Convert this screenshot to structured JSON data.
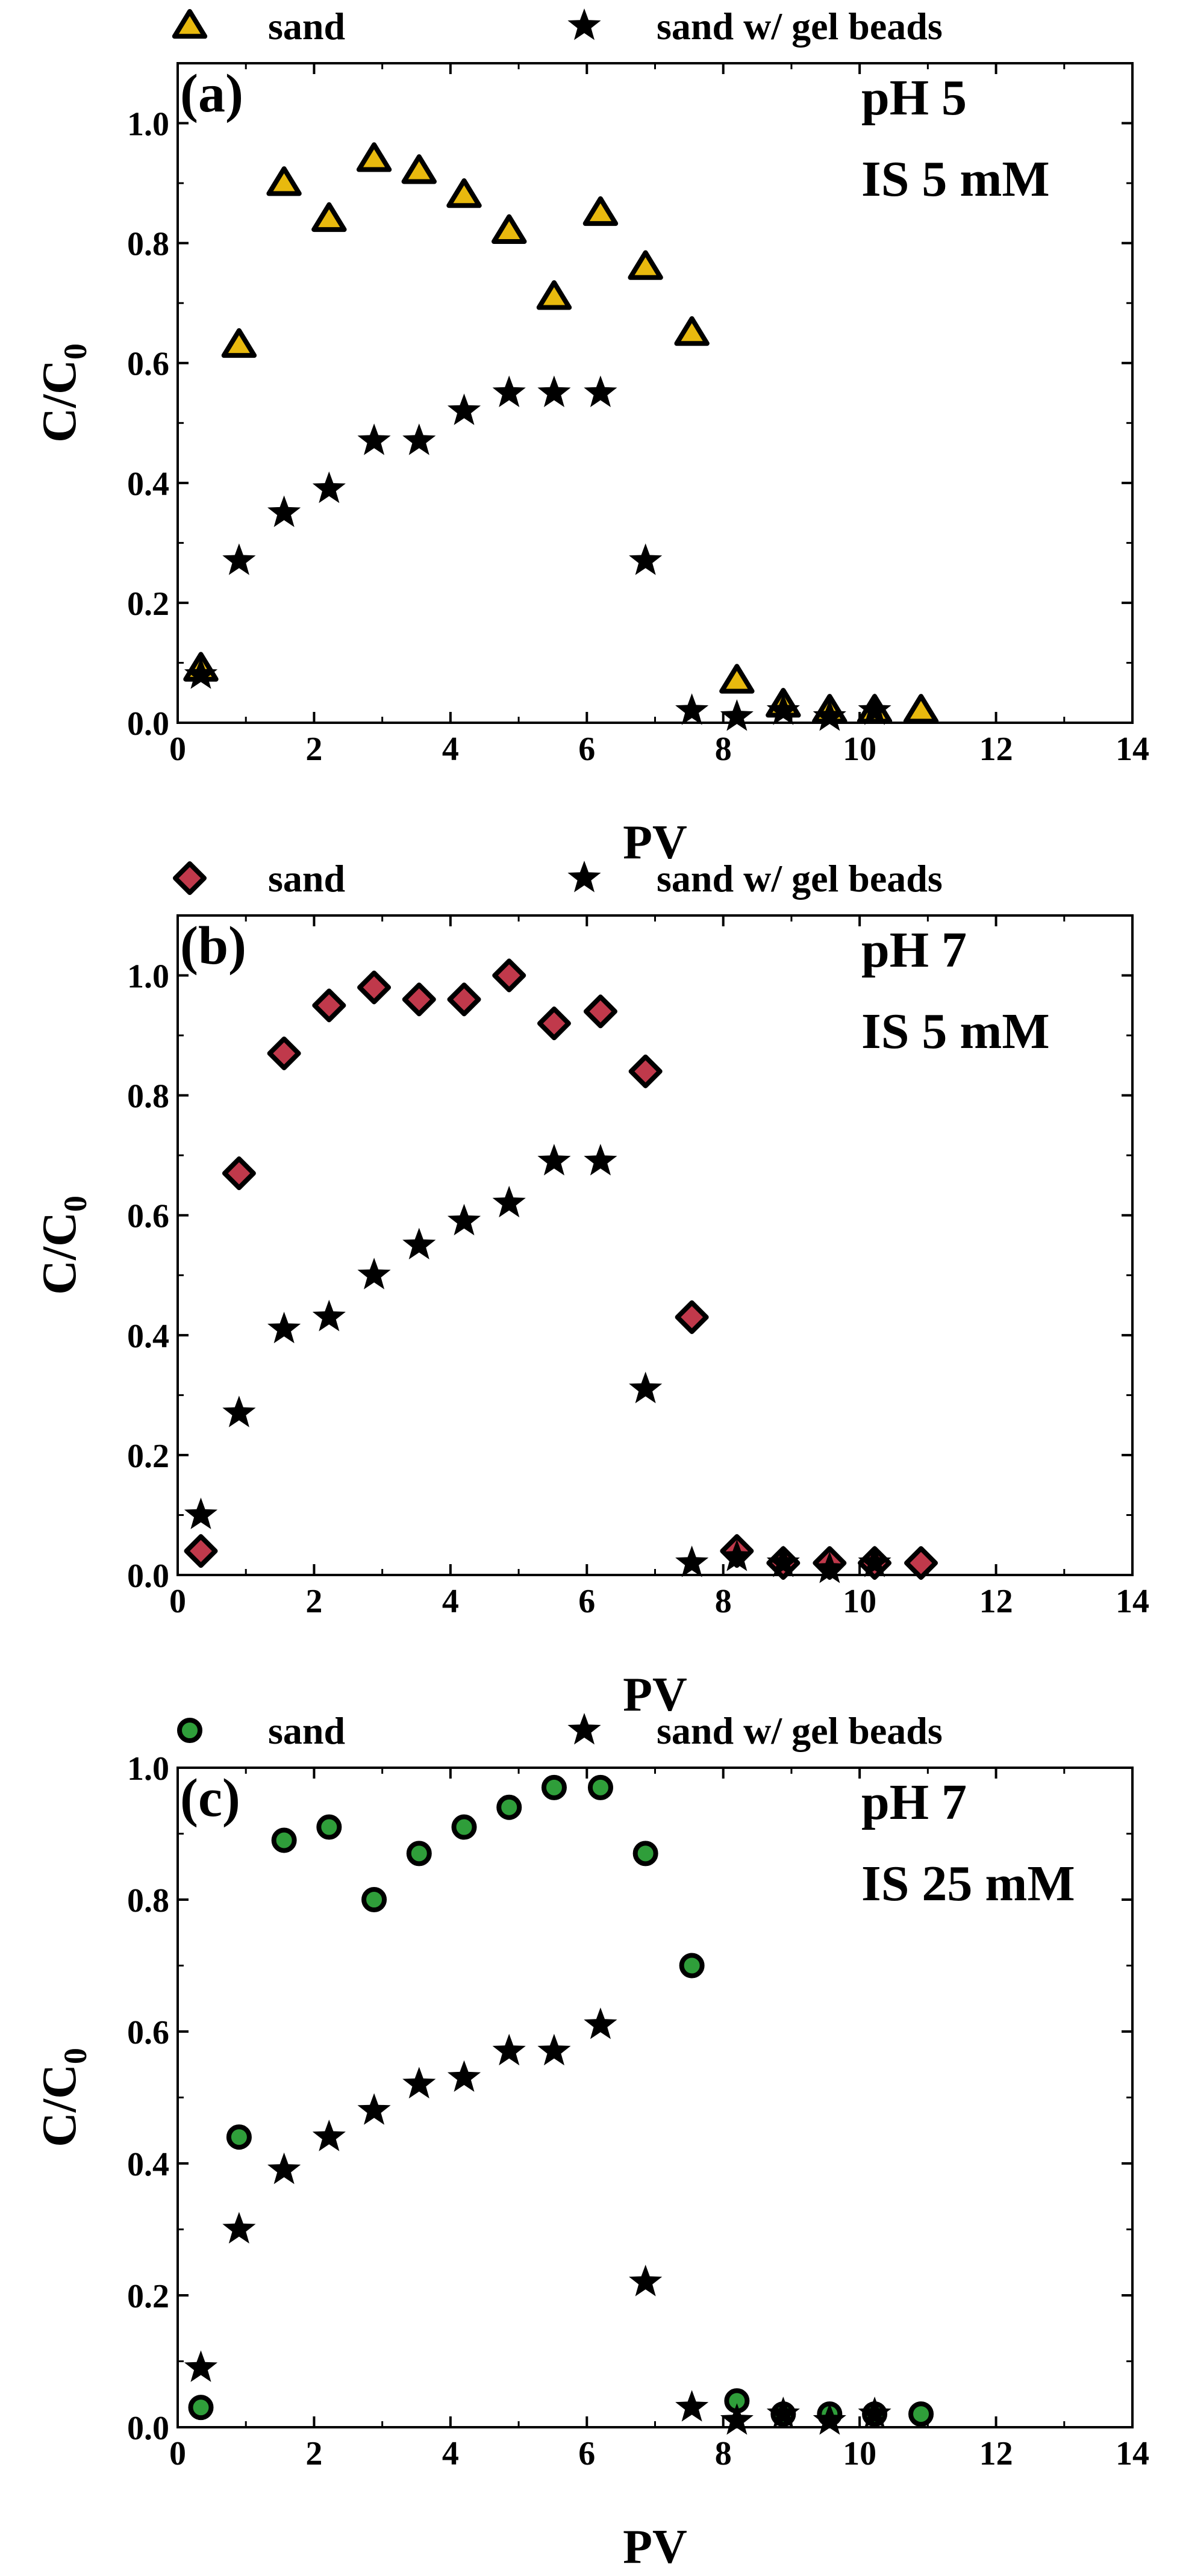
{
  "chart_data": [
    {
      "type": "scatter",
      "panel_label": "(a)",
      "annotations": [
        "pH 5",
        "IS   5 mM"
      ],
      "xlabel": "PV",
      "ylabel_main": "C/C",
      "ylabel_sub": "0",
      "xlim": [
        0,
        14
      ],
      "ylim": [
        0,
        1.1
      ],
      "xticks": [
        "0",
        "2",
        "4",
        "6",
        "8",
        "10",
        "12",
        "14"
      ],
      "yticks": [
        "0.0",
        "0.2",
        "0.4",
        "0.6",
        "0.8",
        "1.0"
      ],
      "legend_position": "top",
      "series": [
        {
          "name": "sand",
          "marker": "triangle",
          "color": "#e8b90e",
          "x": [
            0.34,
            0.9,
            1.56,
            2.22,
            2.88,
            3.54,
            4.2,
            4.86,
            5.52,
            6.2,
            6.86,
            7.54,
            8.2,
            8.88,
            9.56,
            10.22,
            10.9
          ],
          "y": [
            0.09,
            0.63,
            0.9,
            0.84,
            0.94,
            0.92,
            0.88,
            0.82,
            0.71,
            0.85,
            0.76,
            0.65,
            0.07,
            0.03,
            0.02,
            0.02,
            0.02
          ]
        },
        {
          "name": "sand w/ gel beads",
          "marker": "star",
          "color": "#000000",
          "x": [
            0.34,
            0.9,
            1.56,
            2.22,
            2.88,
            3.54,
            4.2,
            4.86,
            5.52,
            6.2,
            6.86,
            7.54,
            8.2,
            8.88,
            9.56,
            10.22
          ],
          "y": [
            0.08,
            0.27,
            0.35,
            0.39,
            0.47,
            0.47,
            0.52,
            0.55,
            0.55,
            0.55,
            0.27,
            0.02,
            0.01,
            0.02,
            0.01,
            0.02
          ]
        }
      ]
    },
    {
      "type": "scatter",
      "panel_label": "(b)",
      "annotations": [
        "pH 7",
        "IS   5 mM"
      ],
      "xlabel": "PV",
      "ylabel_main": "C/C",
      "ylabel_sub": "0",
      "xlim": [
        0,
        14
      ],
      "ylim": [
        0,
        1.1
      ],
      "xticks": [
        "0",
        "2",
        "4",
        "6",
        "8",
        "10",
        "12",
        "14"
      ],
      "yticks": [
        "0.0",
        "0.2",
        "0.4",
        "0.6",
        "0.8",
        "1.0"
      ],
      "legend_position": "top",
      "series": [
        {
          "name": "sand",
          "marker": "diamond",
          "color": "#c0394b",
          "x": [
            0.34,
            0.9,
            1.56,
            2.22,
            2.88,
            3.54,
            4.2,
            4.86,
            5.52,
            6.2,
            6.86,
            7.54,
            8.2,
            8.88,
            9.56,
            10.22,
            10.9
          ],
          "y": [
            0.04,
            0.67,
            0.87,
            0.95,
            0.98,
            0.96,
            0.96,
            1.0,
            0.92,
            0.94,
            0.84,
            0.43,
            0.04,
            0.02,
            0.02,
            0.02,
            0.02
          ]
        },
        {
          "name": "sand w/ gel beads",
          "marker": "star",
          "color": "#000000",
          "x": [
            0.34,
            0.9,
            1.56,
            2.22,
            2.88,
            3.54,
            4.2,
            4.86,
            5.52,
            6.2,
            6.86,
            7.54,
            8.2,
            8.88,
            9.56,
            10.22
          ],
          "y": [
            0.1,
            0.27,
            0.41,
            0.43,
            0.5,
            0.55,
            0.59,
            0.62,
            0.69,
            0.69,
            0.31,
            0.02,
            0.03,
            0.02,
            0.01,
            0.02
          ]
        }
      ]
    },
    {
      "type": "scatter",
      "panel_label": "(c)",
      "annotations": [
        "pH 7",
        "IS   25 mM"
      ],
      "xlabel": "PV",
      "ylabel_main": "C/C",
      "ylabel_sub": "0",
      "xlim": [
        0,
        14
      ],
      "ylim": [
        0,
        1.0
      ],
      "xticks": [
        "0",
        "2",
        "4",
        "6",
        "8",
        "10",
        "12",
        "14"
      ],
      "yticks": [
        "0.0",
        "0.2",
        "0.4",
        "0.6",
        "0.8",
        "1.0"
      ],
      "legend_position": "top",
      "series": [
        {
          "name": "sand",
          "marker": "circle",
          "color": "#2f9e3a",
          "x": [
            0.34,
            0.9,
            1.56,
            2.22,
            2.88,
            3.54,
            4.2,
            4.86,
            5.52,
            6.2,
            6.86,
            7.54,
            8.2,
            8.88,
            9.56,
            10.22,
            10.9
          ],
          "y": [
            0.03,
            0.44,
            0.89,
            0.91,
            0.8,
            0.87,
            0.91,
            0.94,
            0.97,
            0.97,
            0.87,
            0.7,
            0.04,
            0.02,
            0.02,
            0.02,
            0.02
          ]
        },
        {
          "name": "sand w/ gel beads",
          "marker": "star",
          "color": "#000000",
          "x": [
            0.34,
            0.9,
            1.56,
            2.22,
            2.88,
            3.54,
            4.2,
            4.86,
            5.52,
            6.2,
            6.86,
            7.54,
            8.2,
            8.88,
            9.56,
            10.22
          ],
          "y": [
            0.09,
            0.3,
            0.39,
            0.44,
            0.48,
            0.52,
            0.53,
            0.57,
            0.57,
            0.61,
            0.22,
            0.03,
            0.01,
            0.02,
            0.01,
            0.02
          ]
        }
      ]
    }
  ]
}
